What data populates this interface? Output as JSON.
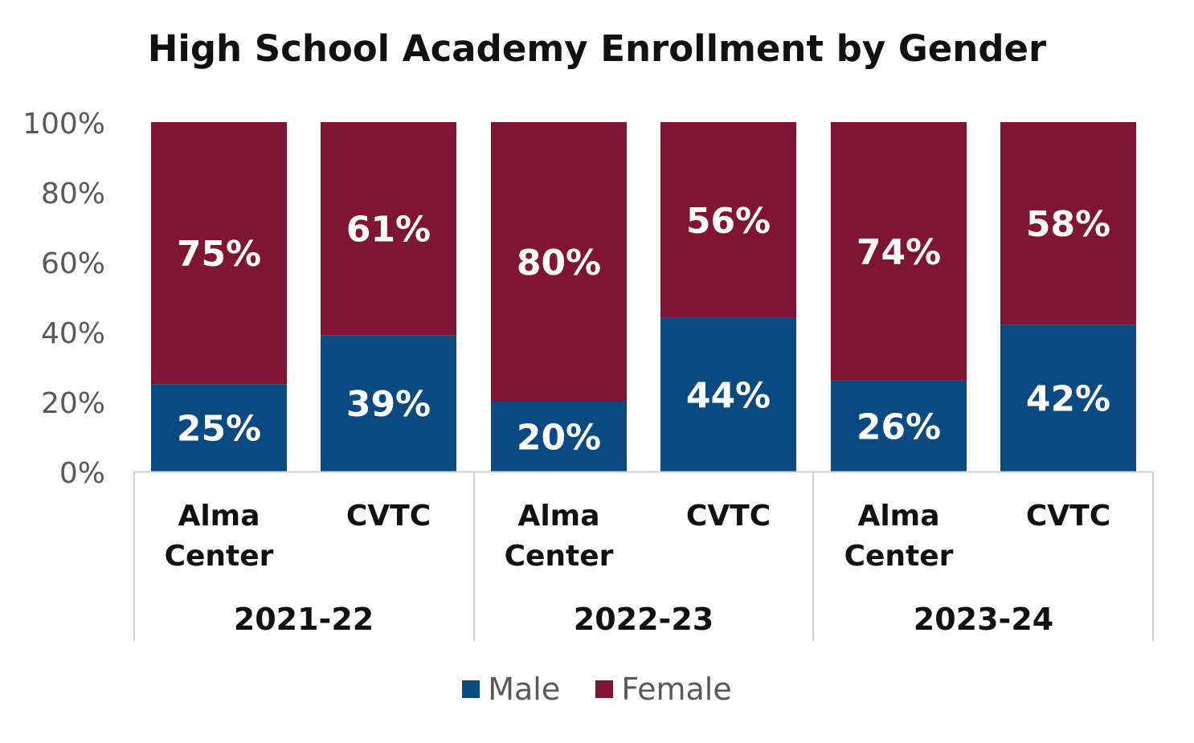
{
  "chart_data": {
    "type": "bar",
    "stacked": true,
    "title": "High School Academy Enrollment by Gender",
    "groups": [
      {
        "label": "2021-22",
        "categories": [
          "Alma Center",
          "CVTC"
        ]
      },
      {
        "label": "2022-23",
        "categories": [
          "Alma Center",
          "CVTC"
        ]
      },
      {
        "label": "2023-24",
        "categories": [
          "Alma Center",
          "CVTC"
        ]
      }
    ],
    "categories": [
      "Alma Center",
      "CVTC",
      "Alma Center",
      "CVTC",
      "Alma Center",
      "CVTC"
    ],
    "series": [
      {
        "name": "Male",
        "color": "#0B4A80",
        "values": [
          25,
          39,
          20,
          44,
          26,
          42
        ],
        "labels": [
          "25%",
          "39%",
          "20%",
          "44%",
          "26%",
          "42%"
        ]
      },
      {
        "name": "Female",
        "color": "#7F1434",
        "values": [
          75,
          61,
          80,
          56,
          74,
          58
        ],
        "labels": [
          "75%",
          "61%",
          "80%",
          "56%",
          "74%",
          "58%"
        ]
      }
    ],
    "ylim": [
      0,
      100
    ],
    "yticks": [
      "0%",
      "20%",
      "40%",
      "60%",
      "80%",
      "100%"
    ],
    "ytick_values": [
      0,
      20,
      40,
      60,
      80,
      100
    ],
    "grid": false,
    "legend_position": "bottom"
  }
}
